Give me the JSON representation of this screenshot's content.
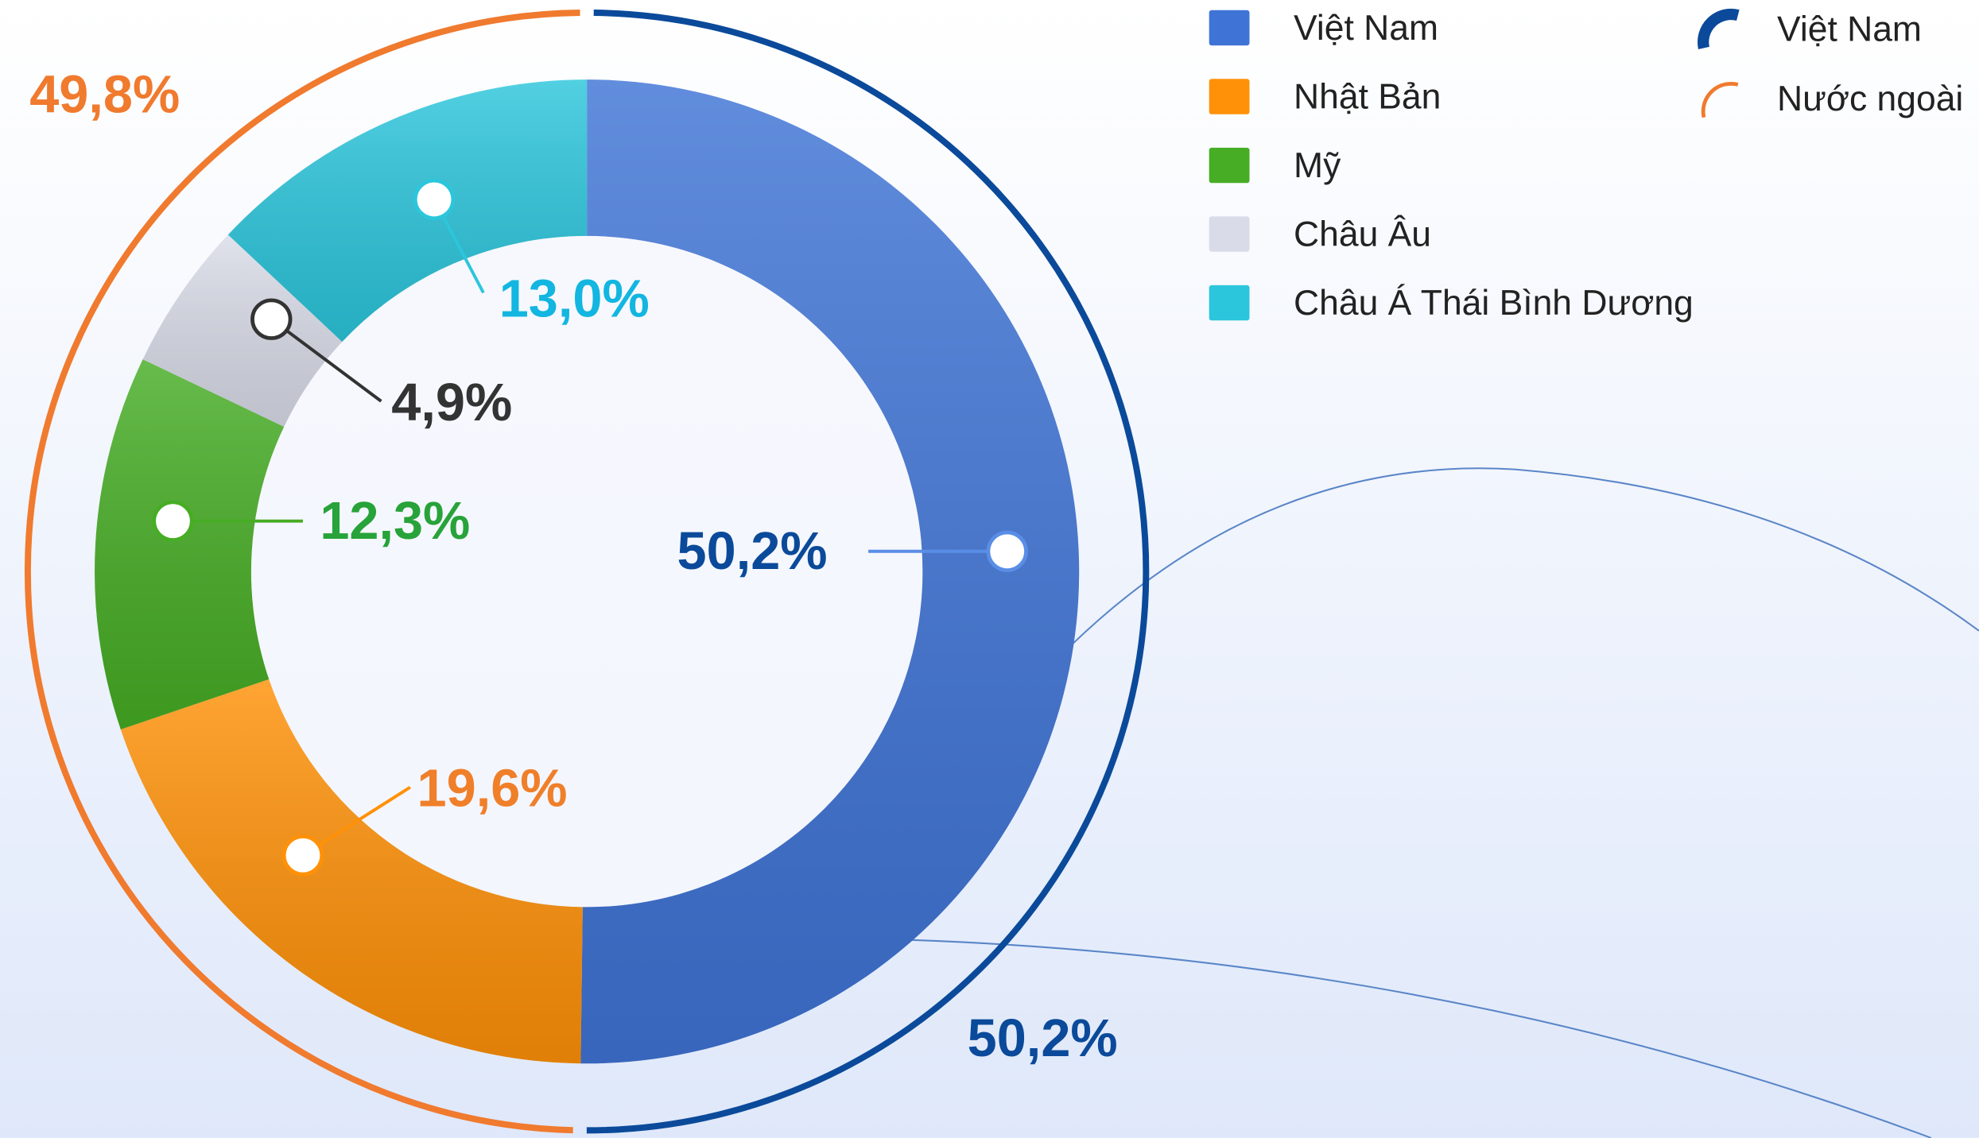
{
  "chart_data": [
    {
      "type": "donut",
      "categories": [
        "Việt Nam",
        "Nhật Bản",
        "Mỹ",
        "Châu Âu",
        "Châu Á Thái Bình Dương"
      ],
      "values": [
        50.2,
        19.6,
        12.3,
        4.9,
        13.0
      ],
      "value_labels": [
        "50,2%",
        "19,6%",
        "12,3%",
        "4,9%",
        "13,0%"
      ],
      "colors": [
        "#3f74d6",
        "#ff9108",
        "#46ad24",
        "#d9dce8",
        "#2cc6dc"
      ],
      "label_colors": [
        "#0b4a9a",
        "#f07f2a",
        "#27a33a",
        "#333333",
        "#12b6e0"
      ]
    },
    {
      "type": "ring",
      "categories": [
        "Việt Nam",
        "Nước ngoài"
      ],
      "values": [
        50.2,
        49.8
      ],
      "value_labels": [
        "50,2%",
        "49,8%"
      ],
      "colors": [
        "#0b4a9a",
        "#f07a2e"
      ]
    }
  ]
}
